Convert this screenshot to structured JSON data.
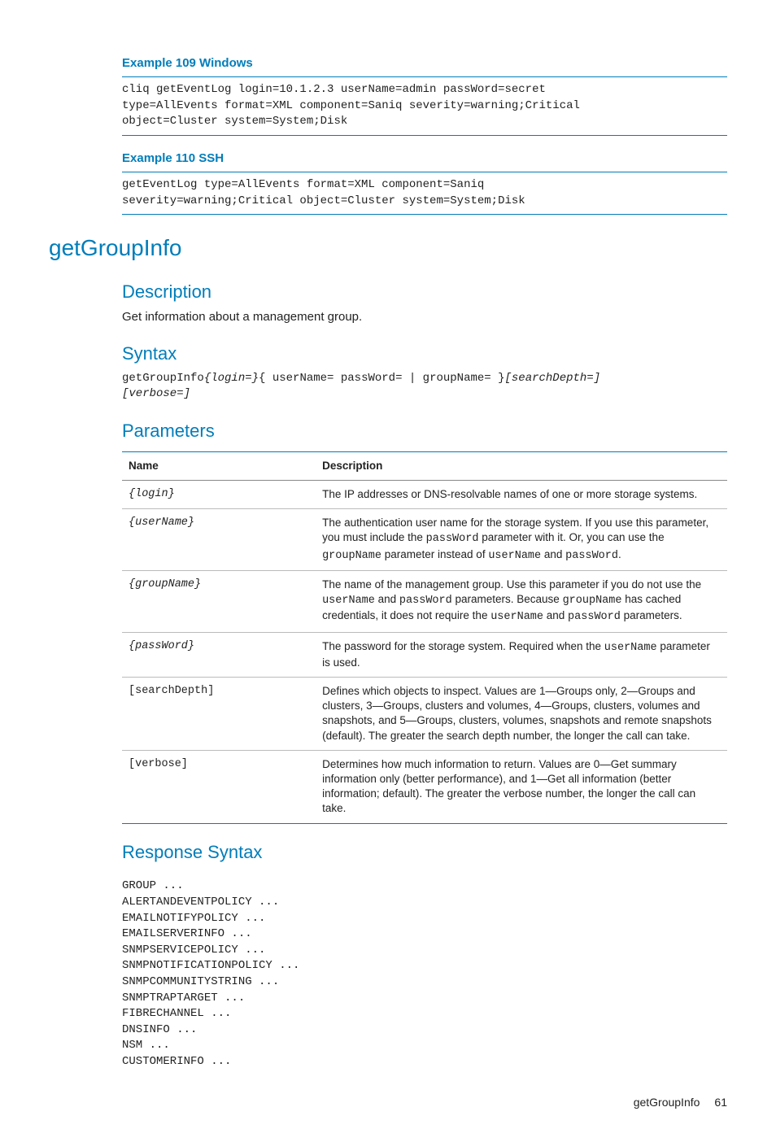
{
  "examples": {
    "windows": {
      "title": "Example 109 Windows",
      "code": "cliq getEventLog login=10.1.2.3 userName=admin passWord=secret\ntype=AllEvents format=XML component=Saniq severity=warning;Critical\nobject=Cluster system=System;Disk"
    },
    "ssh": {
      "title": "Example 110 SSH",
      "code": "getEventLog type=AllEvents format=XML component=Saniq\nseverity=warning;Critical object=Cluster system=System;Disk"
    }
  },
  "command": "getGroupInfo",
  "description": {
    "title": "Description",
    "text": "Get information about a management group."
  },
  "syntax": {
    "title": "Syntax",
    "cmd": "getGroupInfo",
    "parts": {
      "login": "{login=}",
      "user_pw_group": "{ userName= passWord= | groupName= }",
      "searchDepth": "[searchDepth=]",
      "verbose": "[verbose=]"
    }
  },
  "parameters": {
    "title": "Parameters",
    "headers": {
      "name": "Name",
      "desc": "Description"
    },
    "rows": [
      {
        "name": "{login}",
        "name_italic": true,
        "desc": "The IP addresses or DNS-resolvable names of one or more storage systems."
      },
      {
        "name": "{userName}",
        "name_italic": true,
        "desc": "The authentication user name for the storage system. If you use this parameter, you must include the <span class=\"mono\">passWord</span> parameter with it. Or, you can use the <span class=\"mono\">groupName</span> parameter instead of <span class=\"mono\">userName</span> and <span class=\"mono\">passWord</span>."
      },
      {
        "name": "{groupName}",
        "name_italic": true,
        "desc": "The name of the management group. Use this parameter if you do not use the <span class=\"mono\">userName</span> and <span class=\"mono\">passWord</span> parameters. Because <span class=\"mono\">groupName</span> has cached credentials, it does not require the <span class=\"mono\">userName</span> and <span class=\"mono\">passWord</span> parameters."
      },
      {
        "name": "{passWord}",
        "name_italic": true,
        "desc": "The password for the storage system. Required when the <span class=\"mono\">userName</span> parameter is used."
      },
      {
        "name": "[searchDepth]",
        "name_italic": false,
        "desc": "Defines which objects to inspect. Values are 1—Groups only, 2—Groups and clusters, 3—Groups, clusters and volumes, 4—Groups, clusters, volumes and snapshots, and 5—Groups, clusters, volumes, snapshots and remote snapshots (default). The greater the search depth number, the longer the call can take."
      },
      {
        "name": "[verbose]",
        "name_italic": false,
        "desc": "Determines how much information to return. Values are 0—Get summary information only (better performance), and 1—Get all information (better information; default). The greater the verbose number, the longer the call can take."
      }
    ]
  },
  "response": {
    "title": "Response Syntax",
    "text": "GROUP ...\nALERTANDEVENTPOLICY ...\nEMAILNOTIFYPOLICY ...\nEMAILSERVERINFO ...\nSNMPSERVICEPOLICY ...\nSNMPNOTIFICATIONPOLICY ...\nSNMPCOMMUNITYSTRING ...\nSNMPTRAPTARGET ...\nFIBRECHANNEL ...\nDNSINFO ...\nNSM ...\nCUSTOMERINFO ..."
  },
  "footer": {
    "cmd": "getGroupInfo",
    "page": "61"
  }
}
